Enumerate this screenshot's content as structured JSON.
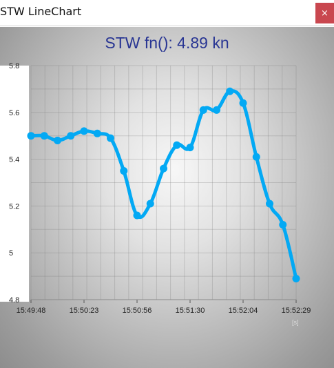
{
  "window": {
    "title": "STW LineChart",
    "close_glyph": "×",
    "close_icon": "close-icon",
    "close_color": "#c9474f"
  },
  "chart_title": "STW fn(): 4.89 kn",
  "chart_data": {
    "type": "line",
    "title": "STW fn(): 4.89 kn",
    "xlabel": "",
    "ylabel": "",
    "x_unit": "[s]",
    "ylim": [
      4.8,
      5.8
    ],
    "y_ticks": [
      "4.8",
      "5",
      "5.2",
      "5.4",
      "5.6",
      "5.8"
    ],
    "x_ticks": [
      "15:49:48",
      "15:50:23",
      "15:50:56",
      "15:51:30",
      "15:52:04",
      "15:52:29"
    ],
    "grid": true,
    "series": [
      {
        "color": "#03a9f4",
        "values": [
          5.5,
          5.5,
          5.48,
          5.5,
          5.52,
          5.51,
          5.49,
          5.35,
          5.16,
          5.21,
          5.36,
          5.46,
          5.45,
          5.61,
          5.61,
          5.69,
          5.64,
          5.41,
          5.21,
          5.12,
          4.89
        ]
      }
    ]
  }
}
